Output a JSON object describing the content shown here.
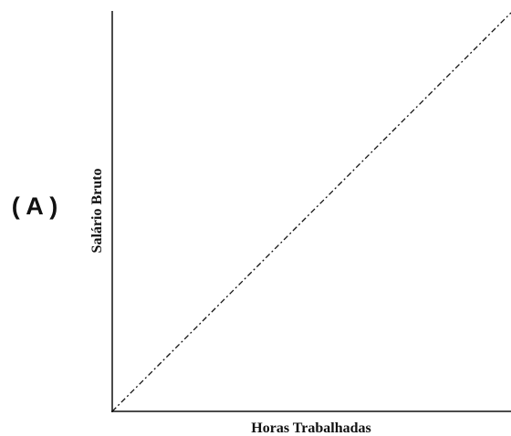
{
  "panel_label": "( A )",
  "y_axis_label": "Salário Bruto",
  "x_axis_label": "Horas Trabalhadas"
}
